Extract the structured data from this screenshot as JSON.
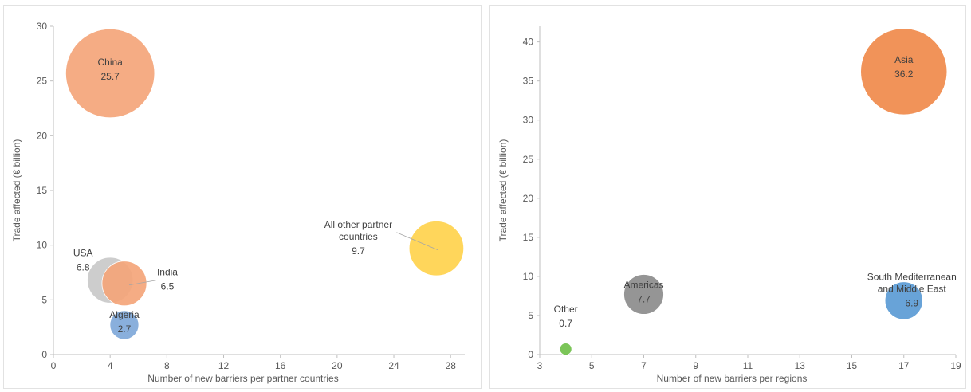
{
  "chart_data": [
    {
      "type": "bubble",
      "title": "",
      "xlabel": "Number of new barriers per partner countries",
      "ylabel": "Trade affected (€ billion)",
      "xlim": [
        0,
        29
      ],
      "ylim": [
        0,
        30
      ],
      "xticks": [
        0,
        4,
        8,
        12,
        16,
        20,
        24,
        28
      ],
      "yticks": [
        0,
        5,
        10,
        15,
        20,
        25,
        30
      ],
      "grid": false,
      "bubbles": [
        {
          "name": "China",
          "value_label": "25.7",
          "x": 4,
          "y": 25.7,
          "size": 25.7,
          "color": "#f4a57a"
        },
        {
          "name": "USA",
          "value_label": "6.8",
          "x": 4,
          "y": 6.8,
          "size": 6.8,
          "color": "#c9c9c9"
        },
        {
          "name": "India",
          "value_label": "6.5",
          "x": 5,
          "y": 6.5,
          "size": 6.5,
          "color": "#f4a57a"
        },
        {
          "name": "Algeria",
          "value_label": "2.7",
          "x": 5,
          "y": 2.7,
          "size": 2.7,
          "color": "#7fa8d9"
        },
        {
          "name": "All other partner countries",
          "name_lines": [
            "All other partner",
            "countries"
          ],
          "value_label": "9.7",
          "x": 27,
          "y": 9.7,
          "size": 9.7,
          "color": "#ffd24d"
        }
      ]
    },
    {
      "type": "bubble",
      "title": "",
      "xlabel": "Number of new barriers per regions",
      "ylabel": "Trade affected (€ billion)",
      "xlim": [
        3,
        19
      ],
      "ylim": [
        0,
        42
      ],
      "xticks": [
        3,
        5,
        7,
        9,
        11,
        13,
        15,
        17,
        19
      ],
      "yticks": [
        0,
        5,
        10,
        15,
        20,
        25,
        30,
        35,
        40
      ],
      "grid": false,
      "bubbles": [
        {
          "name": "Asia",
          "value_label": "36.2",
          "x": 17,
          "y": 36.2,
          "size": 36.2,
          "color": "#f08a4b"
        },
        {
          "name": "Americas",
          "value_label": "7.7",
          "x": 7,
          "y": 7.7,
          "size": 7.7,
          "color": "#8c8c8c"
        },
        {
          "name": "South Mediterranean and Middle East",
          "name_lines": [
            "South Mediterranean",
            "and Middle East"
          ],
          "value_label": "6.9",
          "x": 17,
          "y": 6.9,
          "size": 6.9,
          "color": "#5b9bd5"
        },
        {
          "name": "Other",
          "value_label": "0.7",
          "x": 4,
          "y": 0.7,
          "size": 0.7,
          "color": "#70c04a"
        }
      ]
    }
  ]
}
